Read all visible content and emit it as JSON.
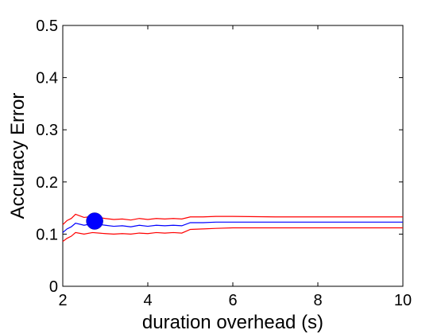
{
  "chart_data": {
    "type": "line",
    "title": "",
    "xlabel": "duration overhead (s)",
    "ylabel": "Accuracy Error",
    "xlim": [
      2,
      10
    ],
    "ylim": [
      0,
      0.5
    ],
    "xticks": [
      2,
      4,
      6,
      8,
      10
    ],
    "yticks": [
      0,
      0.1,
      0.2,
      0.3,
      0.4,
      0.5
    ],
    "xtick_labels": [
      "2",
      "4",
      "6",
      "8",
      "10"
    ],
    "ytick_labels": [
      "0",
      "0.1",
      "0.2",
      "0.3",
      "0.4",
      "0.5"
    ],
    "grid": false,
    "series": [
      {
        "color": "#ff0000",
        "role": "upper bound",
        "x": [
          2.0,
          2.1,
          2.2,
          2.3,
          2.5,
          2.7,
          3.0,
          3.2,
          3.4,
          3.6,
          3.8,
          4.0,
          4.2,
          4.4,
          4.6,
          4.8,
          5.0,
          5.3,
          5.6,
          6.0,
          7.0,
          8.0,
          9.0,
          10.0
        ],
        "y": [
          0.118,
          0.126,
          0.13,
          0.138,
          0.132,
          0.134,
          0.13,
          0.128,
          0.129,
          0.127,
          0.13,
          0.128,
          0.13,
          0.129,
          0.13,
          0.129,
          0.133,
          0.133,
          0.134,
          0.134,
          0.133,
          0.133,
          0.133,
          0.133
        ]
      },
      {
        "color": "#0000ff",
        "role": "mean",
        "x": [
          2.0,
          2.1,
          2.2,
          2.3,
          2.5,
          2.7,
          3.0,
          3.2,
          3.4,
          3.6,
          3.8,
          4.0,
          4.2,
          4.4,
          4.6,
          4.8,
          5.0,
          5.3,
          5.6,
          6.0,
          7.0,
          8.0,
          9.0,
          10.0
        ],
        "y": [
          0.103,
          0.11,
          0.114,
          0.121,
          0.117,
          0.12,
          0.117,
          0.115,
          0.116,
          0.114,
          0.117,
          0.115,
          0.117,
          0.116,
          0.117,
          0.116,
          0.122,
          0.122,
          0.123,
          0.123,
          0.123,
          0.123,
          0.123,
          0.123
        ]
      },
      {
        "color": "#ff0000",
        "role": "lower bound",
        "x": [
          2.0,
          2.1,
          2.2,
          2.3,
          2.5,
          2.7,
          3.0,
          3.2,
          3.4,
          3.6,
          3.8,
          4.0,
          4.2,
          4.4,
          4.6,
          4.8,
          5.0,
          5.3,
          5.6,
          6.0,
          7.0,
          8.0,
          9.0,
          10.0
        ],
        "y": [
          0.086,
          0.092,
          0.096,
          0.103,
          0.1,
          0.103,
          0.101,
          0.1,
          0.101,
          0.1,
          0.102,
          0.101,
          0.103,
          0.102,
          0.103,
          0.102,
          0.109,
          0.11,
          0.111,
          0.112,
          0.112,
          0.112,
          0.112,
          0.112
        ]
      }
    ],
    "marker": {
      "x": 2.75,
      "y": 0.125,
      "color": "#0000ff",
      "shape": "circle"
    }
  }
}
